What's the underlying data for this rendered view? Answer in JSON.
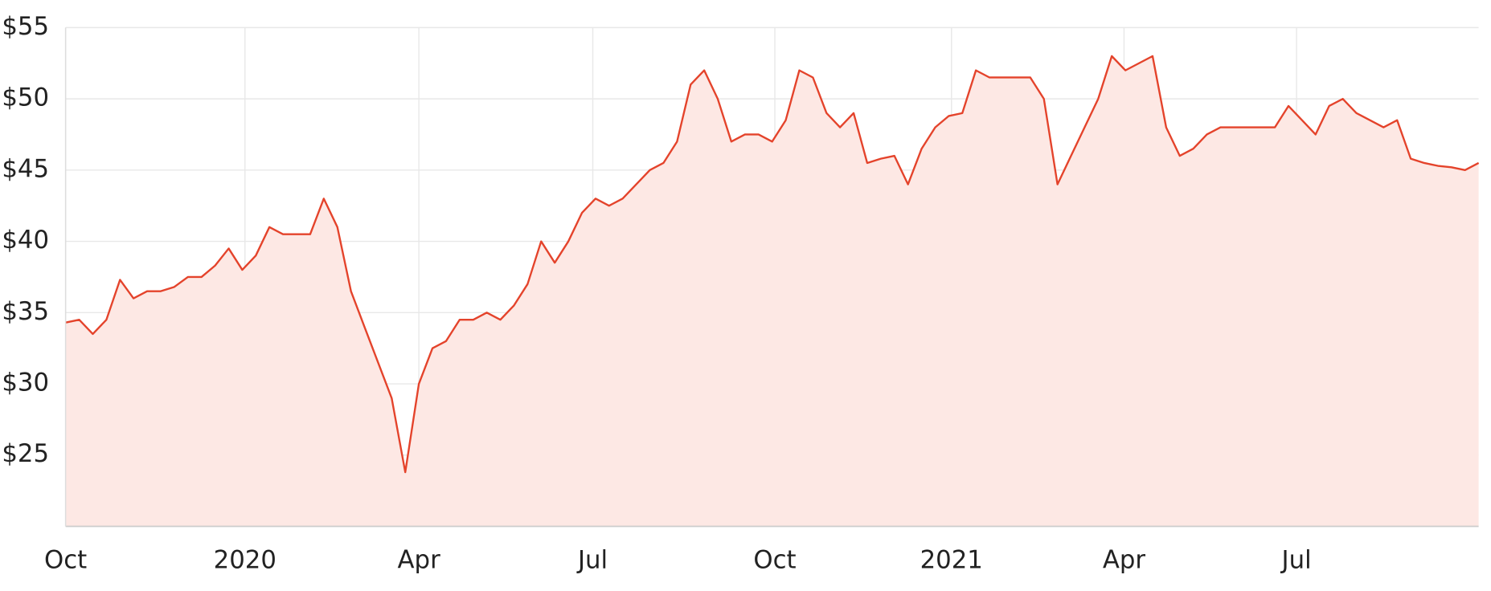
{
  "chart_data": {
    "type": "area",
    "color": "#e4432b",
    "fill": "#fde8e4",
    "grid": true,
    "values": [
      34.3,
      34.5,
      33.5,
      34.5,
      37.3,
      36,
      36.5,
      36.5,
      36.8,
      37.5,
      37.5,
      38.3,
      39.5,
      38,
      39,
      41,
      40.5,
      40.5,
      40.5,
      43,
      41,
      36.5,
      34,
      31.5,
      29,
      23.8,
      30,
      32.5,
      33,
      34.5,
      34.5,
      35,
      34.5,
      35.5,
      37,
      40,
      38.5,
      40,
      42,
      43,
      42.5,
      43,
      44,
      45,
      45.5,
      47,
      51,
      52,
      50,
      47,
      47.5,
      47.5,
      47,
      48.5,
      52,
      51.5,
      49,
      48,
      49,
      45.5,
      45.8,
      46,
      44,
      46.5,
      48,
      48.8,
      49,
      52,
      51.5,
      51.5,
      51.5,
      51.5,
      50,
      44,
      46,
      48,
      50,
      53,
      52,
      52.5,
      53,
      48,
      46,
      46.5,
      47.5,
      48,
      48,
      48,
      48,
      48,
      49.5,
      48.5,
      47.5,
      49.5,
      50,
      49,
      48.5,
      48,
      48.5,
      45.8,
      45.5,
      45.3,
      45.2,
      45,
      45.5
    ],
    "xlim": [
      0,
      104
    ],
    "xticks": [
      {
        "value": 0,
        "label": "Oct"
      },
      {
        "value": 13.2,
        "label": "2020"
      },
      {
        "value": 26,
        "label": "Apr"
      },
      {
        "value": 38.8,
        "label": "Jul"
      },
      {
        "value": 52.2,
        "label": "Oct"
      },
      {
        "value": 65.2,
        "label": "2021"
      },
      {
        "value": 77.9,
        "label": "Apr"
      },
      {
        "value": 90.6,
        "label": "Jul"
      }
    ],
    "ylim": [
      20,
      55
    ],
    "yticks": [
      {
        "value": 25,
        "label": "$25"
      },
      {
        "value": 30,
        "label": "$30"
      },
      {
        "value": 35,
        "label": "$35"
      },
      {
        "value": 40,
        "label": "$40"
      },
      {
        "value": 45,
        "label": "$45"
      },
      {
        "value": 50,
        "label": "$50"
      },
      {
        "value": 55,
        "label": "$55"
      }
    ]
  }
}
